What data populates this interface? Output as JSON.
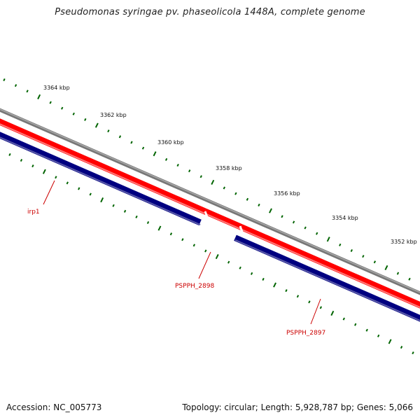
{
  "title": "Pseudomonas syringae pv. phaseolicola 1448A, complete genome",
  "footer": {
    "accession": "Accession: NC_005773",
    "summary": "Topology: circular; Length: 5,928,787 bp; Genes: 5,066"
  },
  "colors": {
    "backbone": "#808080",
    "forward": "#ff0000",
    "reverse": "#000080",
    "tick": "#006400",
    "gene_label": "#cc0000"
  },
  "scale_labels": [
    "3364 kbp",
    "3362 kbp",
    "3360 kbp",
    "3358 kbp",
    "3356 kbp",
    "3354 kbp",
    "3352 kbp"
  ],
  "genes": [
    {
      "name": "irp1",
      "strand": "reverse"
    },
    {
      "name": "PSPPH_2898",
      "strand": "forward"
    },
    {
      "name": "PSPPH_2897",
      "strand": "reverse"
    }
  ]
}
